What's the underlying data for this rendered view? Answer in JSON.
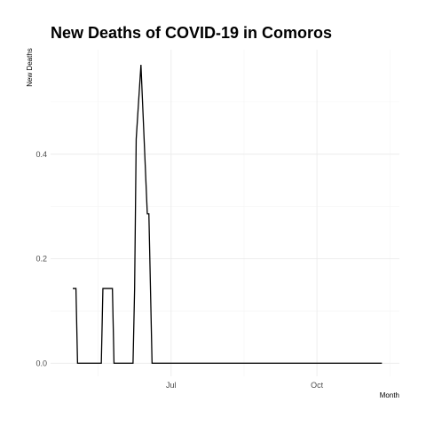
{
  "chart_data": {
    "type": "line",
    "title": "New Deaths of COVID-19 in Comoros",
    "xlabel": "Month",
    "ylabel": "New Deaths",
    "x_ticks": [
      {
        "label": "Jul",
        "date": "2020-07-01"
      },
      {
        "label": "Oct",
        "date": "2020-10-01"
      }
    ],
    "y_ticks": [
      0.0,
      0.2,
      0.4
    ],
    "y_tick_labels": [
      "0.0",
      "0.2",
      "0.4"
    ],
    "xlim": [
      "2020-04-16",
      "2020-11-22"
    ],
    "ylim": [
      -0.025,
      0.6
    ],
    "grid": true,
    "legend": "none",
    "series": [
      {
        "color": "#000000",
        "x": [
          "2020-04-30",
          "2020-05-02",
          "2020-05-03",
          "2020-05-18",
          "2020-05-19",
          "2020-05-25",
          "2020-05-26",
          "2020-06-07",
          "2020-06-08",
          "2020-06-09",
          "2020-06-12",
          "2020-06-16",
          "2020-06-17",
          "2020-06-19",
          "2020-11-11"
        ],
        "values": [
          0.143,
          0.143,
          0,
          0,
          0.143,
          0.143,
          0,
          0,
          0.143,
          0.429,
          0.571,
          0.286,
          0.286,
          0,
          0
        ]
      }
    ]
  }
}
